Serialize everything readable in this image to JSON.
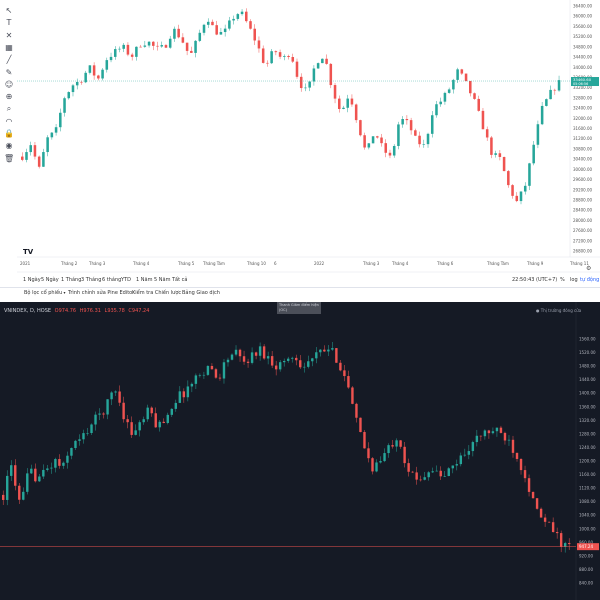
{
  "top_chart": {
    "toolbar_icons": [
      "cursor-icon",
      "text-icon",
      "crossline-icon",
      "pattern-icon",
      "ruler-icon",
      "brush-icon",
      "emoji-icon",
      "measure-icon",
      "zoom-icon",
      "magnet-icon",
      "lock-icon",
      "eye-icon",
      "trash-icon"
    ],
    "y_ticks": [
      "36400.00",
      "36000.00",
      "35600.00",
      "35200.00",
      "34800.00",
      "34400.00",
      "34000.00",
      "33600.00",
      "33200.00",
      "32800.00",
      "32400.00",
      "32000.00",
      "31600.00",
      "31200.00",
      "30800.00",
      "30400.00",
      "30000.00",
      "29600.00",
      "29200.00",
      "28800.00",
      "28400.00",
      "28000.00",
      "27600.00",
      "27200.00",
      "26800.00"
    ],
    "x_ticks": [
      "2021",
      "Tháng 2",
      "Tháng 3",
      "Tháng 4",
      "Tháng 5",
      "Tháng Tám",
      "Tháng 10",
      "6",
      "2022",
      "Tháng 3",
      "Tháng 4",
      "Tháng 6",
      "Tháng Tám",
      "Tháng 9",
      "Tháng 11"
    ],
    "last_price": "33460.60",
    "last_price_sub": "05:06:56",
    "range_buttons": [
      "1 Ngày",
      "5 Ngày",
      "1 Tháng",
      "3 Tháng",
      "6 tháng",
      "YTD",
      "1 Năm",
      "5 Năm",
      "Tất cả"
    ],
    "clock": "22:50:43 (UTC+7)",
    "scale_buttons": [
      "%",
      "log",
      "tự động"
    ],
    "colors": {
      "up": "#26a69a",
      "down": "#ef5350"
    }
  },
  "bottom_tabs": [
    "Bộ lọc cổ phiếu",
    "Trình chỉnh sửa Pine Editor",
    "Kiểm tra Chiến lược",
    "Bảng Giao dịch"
  ],
  "bottom_chart": {
    "symbol": "VNINDEX, D, HOSE",
    "ohlc": {
      "o": "O974.76",
      "h": "H976.31",
      "l": "L935.78",
      "c": "C947.24"
    },
    "status": "Thị trường đóng cửa",
    "tooltip": "Thanh Giảm điểm hiện (OC)",
    "y_ticks": [
      "1560.00",
      "1520.00",
      "1480.00",
      "1440.00",
      "1400.00",
      "1360.00",
      "1320.00",
      "1280.00",
      "1240.00",
      "1200.00",
      "1160.00",
      "1120.00",
      "1080.00",
      "1040.00",
      "1000.00",
      "960.00",
      "920.00",
      "880.00",
      "840.00"
    ],
    "last_price": "947.24",
    "colors": {
      "up": "#26a69a",
      "down": "#ef5350",
      "background": "#151a25",
      "price_line": "#ef5350"
    }
  }
}
